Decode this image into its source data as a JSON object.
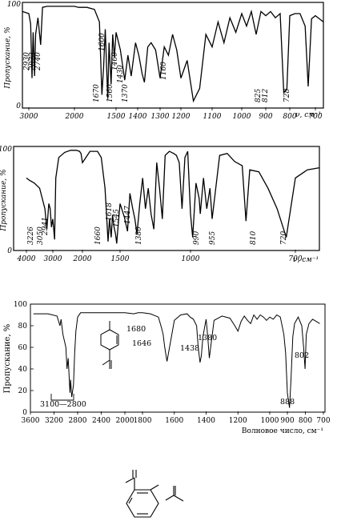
{
  "chart_data": [
    {
      "type": "line",
      "ylabel": "Пропускание, %",
      "xlabel": "ν, см⁻¹",
      "y_ticks": [
        "100",
        "0"
      ],
      "x_ticks": [
        "3000",
        "2000",
        "1500",
        "1400",
        "1300",
        "1200",
        "1100",
        "1000",
        "900",
        "800",
        "700"
      ],
      "annotations": [
        "2930",
        "2873",
        "2740",
        "1670",
        "1600",
        "1560",
        "1460",
        "1430",
        "1370",
        "1160",
        "825",
        "812",
        "728"
      ],
      "series": [
        {
          "x": [
            3150,
            3070,
            3000,
            2960,
            2930,
            2905,
            2873,
            2850,
            2800,
            2740,
            2700,
            2600,
            2400,
            2200,
            2000,
            1950,
            1850,
            1760,
            1700,
            1670,
            1650,
            1630,
            1600,
            1585,
            1560,
            1540,
            1520,
            1500,
            1480,
            1460,
            1445,
            1430,
            1410,
            1395,
            1380,
            1370,
            1355,
            1340,
            1320,
            1300,
            1280,
            1260,
            1240,
            1220,
            1200,
            1180,
            1160,
            1140,
            1120,
            1100,
            1080,
            1060,
            1040,
            1020,
            1000,
            980,
            960,
            940,
            920,
            900,
            880,
            860,
            840,
            825,
            812,
            800,
            780,
            760,
            740,
            728,
            715,
            700,
            680,
            660
          ],
          "y": [
            92,
            91,
            90,
            80,
            28,
            72,
            30,
            70,
            86,
            60,
            96,
            97,
            97,
            97,
            97,
            96,
            96,
            94,
            82,
            12,
            38,
            75,
            8,
            62,
            22,
            70,
            48,
            72,
            55,
            26,
            50,
            30,
            62,
            50,
            32,
            24,
            58,
            62,
            55,
            28,
            58,
            50,
            70,
            55,
            28,
            45,
            6,
            18,
            70,
            58,
            82,
            62,
            86,
            72,
            90,
            78,
            92,
            70,
            92,
            88,
            92,
            86,
            90,
            14,
            18,
            88,
            90,
            90,
            78,
            20,
            85,
            88,
            85,
            82
          ]
        }
      ]
    },
    {
      "type": "line",
      "ylabel": "Пропускание, %",
      "xlabel": "ν, см⁻¹",
      "y_ticks": [
        "100",
        "0"
      ],
      "x_ticks": [
        "4000",
        "3000",
        "2000",
        "1500",
        "1000",
        "700"
      ],
      "annotations": [
        "3226",
        "3050",
        "2941",
        "1660",
        "1618",
        "1545",
        "1447",
        "1380",
        "990",
        "955",
        "810",
        "720"
      ],
      "series": [
        {
          "x": [
            4000,
            3900,
            3700,
            3500,
            3400,
            3300,
            3226,
            3150,
            3100,
            3050,
            3000,
            2941,
            2900,
            2800,
            2600,
            2400,
            2200,
            2100,
            2050,
            2000,
            1900,
            1800,
            1750,
            1700,
            1660,
            1640,
            1618,
            1600,
            1580,
            1560,
            1545,
            1530,
            1500,
            1470,
            1447,
            1430,
            1410,
            1395,
            1380,
            1360,
            1340,
            1320,
            1300,
            1280,
            1260,
            1240,
            1220,
            1200,
            1180,
            1150,
            1120,
            1100,
            1080,
            1060,
            1040,
            1020,
            1000,
            990,
            975,
            960,
            955,
            940,
            925,
            910,
            900,
            880,
            860,
            840,
            820,
            810,
            800,
            780,
            760,
            740,
            720,
            700,
            680,
            660
          ],
          "y": [
            70,
            68,
            65,
            60,
            50,
            40,
            20,
            45,
            40,
            22,
            30,
            10,
            70,
            90,
            95,
            97,
            97,
            96,
            94,
            85,
            96,
            96,
            90,
            60,
            8,
            30,
            12,
            34,
            22,
            15,
            6,
            20,
            45,
            32,
            18,
            55,
            40,
            30,
            15,
            45,
            70,
            40,
            60,
            35,
            20,
            85,
            60,
            30,
            92,
            96,
            94,
            92,
            85,
            40,
            90,
            96,
            35,
            12,
            65,
            50,
            35,
            70,
            40,
            60,
            30,
            92,
            94,
            86,
            82,
            28,
            78,
            76,
            60,
            40,
            12,
            70,
            78,
            80
          ]
        }
      ]
    },
    {
      "type": "line",
      "ylabel": "Пропускание, %",
      "xlabel": "Волновое число, см⁻¹",
      "xlim": [
        3600,
        700
      ],
      "ylim": [
        0,
        100
      ],
      "y_ticks": [
        "100",
        "80",
        "60",
        "40",
        "20",
        "0"
      ],
      "x_ticks": [
        "3600",
        "3200",
        "2800",
        "2400",
        "2000",
        "1800",
        "1600",
        "1400",
        "1200",
        "1000",
        "900",
        "800",
        "700"
      ],
      "annotations": [
        "1680",
        "1646",
        "1438",
        "1380",
        "888",
        "802",
        "3100—2800"
      ],
      "series": [
        {
          "x": [
            3550,
            3300,
            3150,
            3100,
            3080,
            3050,
            3000,
            2980,
            2960,
            2930,
            2920,
            2900,
            2870,
            2850,
            2830,
            2800,
            2750,
            2600,
            2400,
            2200,
            2000,
            1900,
            1850,
            1800,
            1750,
            1700,
            1680,
            1670,
            1660,
            1646,
            1630,
            1600,
            1560,
            1520,
            1500,
            1480,
            1460,
            1450,
            1438,
            1430,
            1420,
            1400,
            1390,
            1380,
            1370,
            1350,
            1300,
            1250,
            1220,
            1200,
            1180,
            1160,
            1140,
            1120,
            1100,
            1080,
            1060,
            1040,
            1020,
            1000,
            980,
            960,
            940,
            920,
            910,
            900,
            895,
            888,
            880,
            870,
            860,
            840,
            820,
            810,
            802,
            795,
            780,
            760,
            740,
            720
          ],
          "y": [
            91,
            91,
            89,
            80,
            86,
            72,
            60,
            40,
            50,
            18,
            30,
            14,
            25,
            55,
            75,
            88,
            92,
            92,
            92,
            92,
            92,
            91,
            92,
            92,
            91,
            88,
            78,
            72,
            60,
            47,
            60,
            85,
            90,
            91,
            88,
            86,
            80,
            60,
            46,
            52,
            70,
            86,
            70,
            50,
            62,
            85,
            89,
            87,
            80,
            75,
            84,
            89,
            85,
            82,
            90,
            86,
            90,
            88,
            85,
            88,
            86,
            90,
            88,
            72,
            55,
            18,
            12,
            4,
            30,
            70,
            82,
            88,
            80,
            60,
            40,
            72,
            82,
            86,
            84,
            82
          ]
        }
      ]
    }
  ]
}
